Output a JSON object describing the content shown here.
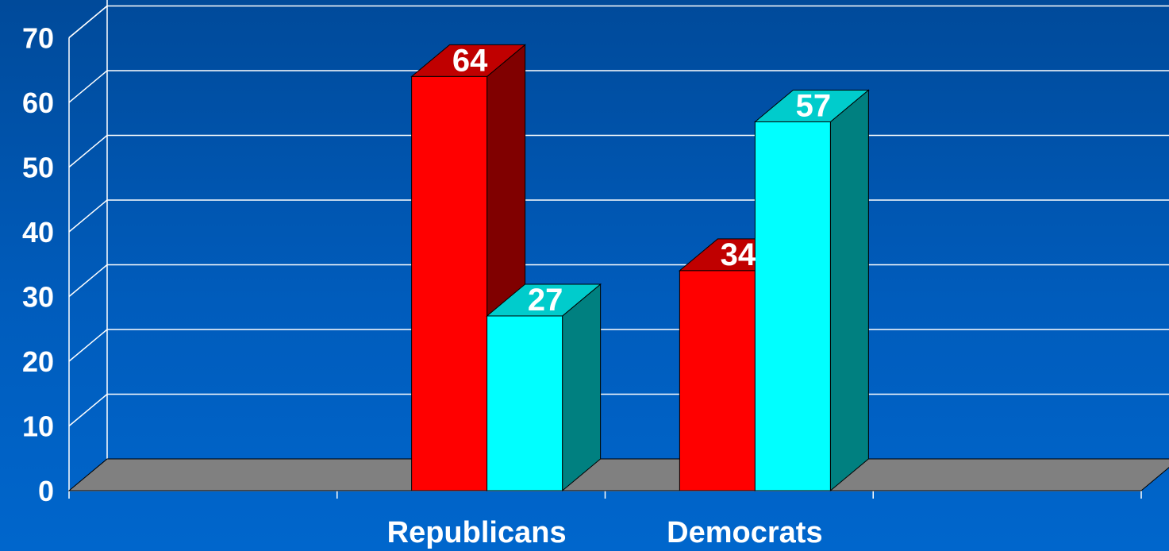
{
  "chart_data": {
    "type": "bar",
    "style": "3d-clustered",
    "categories": [
      "",
      "Republicans",
      "Democrats",
      ""
    ],
    "series": [
      {
        "values": [
          null,
          64,
          34,
          null
        ],
        "color": "#ff0000",
        "side_color": "#800000",
        "top_color": "#c00000"
      },
      {
        "values": [
          null,
          27,
          57,
          null
        ],
        "color": "#00ffff",
        "side_color": "#008080",
        "top_color": "#00cccc"
      }
    ],
    "y_ticks": [
      "0",
      "10",
      "20",
      "30",
      "40",
      "50",
      "60",
      "70"
    ],
    "ylim": [
      0,
      70
    ],
    "grid": true,
    "floor_color": "#808080",
    "title": "",
    "xlabel": "",
    "ylabel": ""
  }
}
